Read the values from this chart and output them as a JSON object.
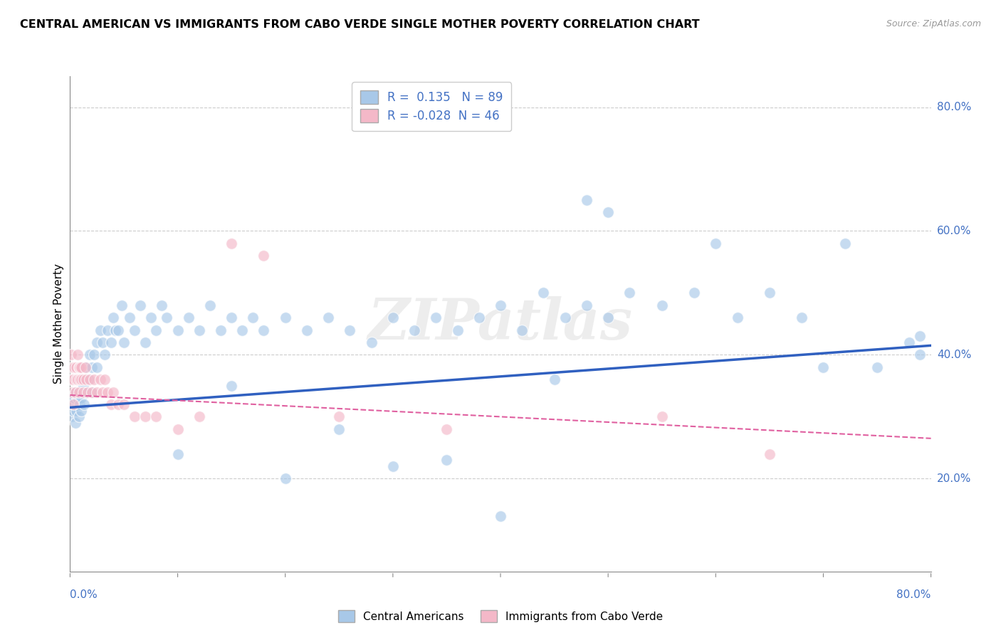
{
  "title": "CENTRAL AMERICAN VS IMMIGRANTS FROM CABO VERDE SINGLE MOTHER POVERTY CORRELATION CHART",
  "source": "Source: ZipAtlas.com",
  "ylabel": "Single Mother Poverty",
  "xlim": [
    0.0,
    0.8
  ],
  "ylim": [
    0.05,
    0.85
  ],
  "ytick_values": [
    0.2,
    0.4,
    0.6,
    0.8
  ],
  "ytick_labels": [
    "20.0%",
    "40.0%",
    "60.0%",
    "80.0%"
  ],
  "r_blue": "0.135",
  "n_blue": "89",
  "r_pink": "-0.028",
  "n_pink": "46",
  "blue_color": "#a8c8e8",
  "pink_color": "#f4b8c8",
  "blue_line_color": "#3060c0",
  "pink_line_color": "#e060a0",
  "background_color": "#ffffff",
  "blue_scatter_x": [
    0.001,
    0.002,
    0.003,
    0.004,
    0.005,
    0.005,
    0.006,
    0.007,
    0.008,
    0.009,
    0.01,
    0.01,
    0.012,
    0.013,
    0.015,
    0.015,
    0.017,
    0.018,
    0.02,
    0.02,
    0.022,
    0.025,
    0.025,
    0.028,
    0.03,
    0.032,
    0.035,
    0.038,
    0.04,
    0.042,
    0.045,
    0.048,
    0.05,
    0.055,
    0.06,
    0.065,
    0.07,
    0.075,
    0.08,
    0.085,
    0.09,
    0.1,
    0.11,
    0.12,
    0.13,
    0.14,
    0.15,
    0.16,
    0.17,
    0.18,
    0.2,
    0.22,
    0.24,
    0.26,
    0.28,
    0.3,
    0.32,
    0.34,
    0.36,
    0.38,
    0.4,
    0.42,
    0.44,
    0.46,
    0.48,
    0.5,
    0.52,
    0.55,
    0.58,
    0.6,
    0.62,
    0.65,
    0.68,
    0.7,
    0.72,
    0.75,
    0.78,
    0.79,
    0.79,
    0.48,
    0.5,
    0.3,
    0.35,
    0.4,
    0.2,
    0.25,
    0.45,
    0.15,
    0.1
  ],
  "blue_scatter_y": [
    0.32,
    0.3,
    0.31,
    0.33,
    0.29,
    0.34,
    0.31,
    0.33,
    0.3,
    0.32,
    0.33,
    0.31,
    0.35,
    0.32,
    0.34,
    0.38,
    0.36,
    0.4,
    0.38,
    0.34,
    0.4,
    0.42,
    0.38,
    0.44,
    0.42,
    0.4,
    0.44,
    0.42,
    0.46,
    0.44,
    0.44,
    0.48,
    0.42,
    0.46,
    0.44,
    0.48,
    0.42,
    0.46,
    0.44,
    0.48,
    0.46,
    0.44,
    0.46,
    0.44,
    0.48,
    0.44,
    0.46,
    0.44,
    0.46,
    0.44,
    0.46,
    0.44,
    0.46,
    0.44,
    0.42,
    0.46,
    0.44,
    0.46,
    0.44,
    0.46,
    0.48,
    0.44,
    0.5,
    0.46,
    0.48,
    0.46,
    0.5,
    0.48,
    0.5,
    0.58,
    0.46,
    0.5,
    0.46,
    0.38,
    0.58,
    0.38,
    0.42,
    0.4,
    0.43,
    0.65,
    0.63,
    0.22,
    0.23,
    0.14,
    0.2,
    0.28,
    0.36,
    0.35,
    0.24
  ],
  "pink_scatter_x": [
    0.001,
    0.001,
    0.002,
    0.002,
    0.003,
    0.003,
    0.004,
    0.005,
    0.006,
    0.006,
    0.007,
    0.007,
    0.008,
    0.008,
    0.009,
    0.009,
    0.01,
    0.01,
    0.012,
    0.012,
    0.014,
    0.015,
    0.016,
    0.018,
    0.02,
    0.022,
    0.025,
    0.028,
    0.03,
    0.032,
    0.035,
    0.038,
    0.04,
    0.045,
    0.05,
    0.06,
    0.07,
    0.08,
    0.1,
    0.12,
    0.15,
    0.18,
    0.25,
    0.35,
    0.55,
    0.65
  ],
  "pink_scatter_y": [
    0.36,
    0.4,
    0.38,
    0.34,
    0.36,
    0.32,
    0.38,
    0.34,
    0.36,
    0.38,
    0.4,
    0.36,
    0.38,
    0.34,
    0.38,
    0.36,
    0.36,
    0.38,
    0.36,
    0.34,
    0.38,
    0.36,
    0.34,
    0.36,
    0.34,
    0.36,
    0.34,
    0.36,
    0.34,
    0.36,
    0.34,
    0.32,
    0.34,
    0.32,
    0.32,
    0.3,
    0.3,
    0.3,
    0.28,
    0.3,
    0.58,
    0.56,
    0.3,
    0.28,
    0.3,
    0.24
  ],
  "blue_line_x0": 0.0,
  "blue_line_x1": 0.8,
  "blue_line_y0": 0.315,
  "blue_line_y1": 0.415,
  "pink_line_x0": 0.0,
  "pink_line_x1": 0.8,
  "pink_line_y0": 0.335,
  "pink_line_y1": 0.265
}
